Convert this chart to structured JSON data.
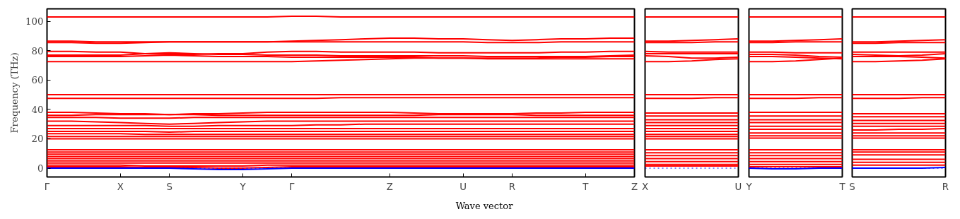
{
  "chart_data": [
    {
      "type": "line",
      "xlabel": "Wave vector",
      "ylabel": "Frequency (THz)",
      "categories": [
        "Γ",
        null,
        null,
        "X",
        null,
        "S",
        null,
        null,
        "Y",
        null,
        "Γ",
        null,
        null,
        null,
        "Z",
        null,
        null,
        "U",
        null,
        "R",
        null,
        null,
        "T",
        null,
        "Z"
      ],
      "ylim": [
        -6,
        108.5
      ],
      "yticks": [
        0,
        20,
        40,
        60,
        80,
        100
      ],
      "ref_lines": [
        {
          "axis": "y",
          "value": 0,
          "color": "#0000ff",
          "line_style": "dotted"
        }
      ],
      "series": [
        {
          "color": "#ff0000",
          "values": [
            103,
            103,
            103,
            103,
            103,
            103,
            103,
            103,
            103,
            103,
            103.5,
            103.5,
            103,
            103,
            103,
            103,
            103,
            103,
            103,
            103,
            103,
            103,
            103,
            103,
            103
          ]
        },
        {
          "color": "#ff0000",
          "values": [
            86.5,
            86.5,
            86,
            86,
            86,
            86,
            86,
            86,
            86,
            86,
            86.5,
            87,
            87.5,
            88,
            88.5,
            88.5,
            88,
            88,
            87.5,
            87,
            87.5,
            88,
            88,
            88.5,
            88.5
          ]
        },
        {
          "color": "#ff0000",
          "values": [
            85.5,
            85.5,
            85,
            85,
            85.5,
            86,
            86,
            86,
            86,
            86,
            86,
            86,
            86,
            86,
            86,
            86,
            86,
            86,
            85.5,
            85.5,
            85.5,
            86,
            86,
            86,
            86
          ]
        },
        {
          "color": "#ff0000",
          "values": [
            79.5,
            79.5,
            79,
            79,
            78,
            77.5,
            77.5,
            78,
            78,
            79,
            79.5,
            79.5,
            79,
            79,
            79,
            79,
            78.5,
            78.5,
            78.5,
            78.5,
            78.5,
            79,
            79,
            79.5,
            79.5
          ]
        },
        {
          "color": "#ff0000",
          "values": [
            77,
            77,
            77,
            77,
            78,
            78.5,
            78,
            77.5,
            77.5,
            77,
            77,
            77,
            76.5,
            76.5,
            76.5,
            76.5,
            76.5,
            76.5,
            76,
            76,
            76,
            76,
            76,
            76.5,
            77
          ]
        },
        {
          "color": "#ff0000",
          "values": [
            76,
            76,
            76,
            76,
            76.5,
            77,
            76.5,
            76,
            76,
            76,
            75.5,
            75.5,
            75.5,
            75.5,
            75.5,
            75.5,
            75,
            75,
            75,
            75,
            75,
            75.5,
            75.5,
            76,
            76
          ]
        },
        {
          "color": "#ff0000",
          "values": [
            72.5,
            72.5,
            72.5,
            72.5,
            72.5,
            72.5,
            72.5,
            72.5,
            72.5,
            72.5,
            72.5,
            73,
            73.5,
            74,
            74.5,
            75,
            75,
            75,
            74.5,
            74.5,
            74.5,
            74.5,
            74.5,
            74.5,
            74.5
          ]
        },
        {
          "color": "#ff0000",
          "values": [
            50,
            50,
            50,
            50,
            50,
            50,
            50,
            50,
            50,
            50,
            50,
            50,
            50,
            50,
            50,
            50,
            50,
            50,
            50,
            50,
            50,
            50,
            50,
            50,
            50
          ]
        },
        {
          "color": "#ff0000",
          "values": [
            47.5,
            47.5,
            47.5,
            47.5,
            47.5,
            47.5,
            47.5,
            47.5,
            47.5,
            47.5,
            47.5,
            47.5,
            48,
            48,
            48,
            48,
            48,
            48,
            48,
            48,
            48,
            48,
            48,
            48,
            48
          ]
        },
        {
          "color": "#ff0000",
          "values": [
            38,
            38,
            37.5,
            37,
            37,
            36.5,
            37,
            37,
            37.5,
            38,
            38,
            38,
            38,
            38,
            38,
            37.5,
            37,
            37,
            37,
            37,
            37.5,
            37.5,
            38,
            38,
            38
          ]
        },
        {
          "color": "#ff0000",
          "values": [
            36,
            36,
            36.5,
            36.5,
            36.5,
            36.5,
            36.5,
            36,
            36,
            36,
            36,
            36,
            36,
            36,
            36,
            36,
            36.5,
            36.5,
            36.5,
            36.5,
            36,
            36,
            36,
            36,
            36
          ]
        },
        {
          "color": "#ff0000",
          "values": [
            34.5,
            34.5,
            34.5,
            34,
            34,
            34,
            34.5,
            34.5,
            34.5,
            34.5,
            34.5,
            34.5,
            34.5,
            34.5,
            34.5,
            34.5,
            34.5,
            34.5,
            34.5,
            34.5,
            34.5,
            34.5,
            34.5,
            34.5,
            34.5
          ]
        },
        {
          "color": "#ff0000",
          "values": [
            32,
            32,
            31.5,
            31,
            30.5,
            30,
            30.5,
            31,
            31.5,
            32,
            32,
            32,
            32,
            32,
            32,
            32,
            32,
            32,
            32,
            32,
            32,
            32,
            32,
            32,
            32
          ]
        },
        {
          "color": "#ff0000",
          "values": [
            29,
            29,
            29,
            29,
            29,
            28.5,
            28.5,
            29,
            29,
            29,
            29,
            29.5,
            29.5,
            30,
            30,
            30,
            30,
            30,
            30,
            30,
            30,
            30,
            30,
            30,
            30
          ]
        },
        {
          "color": "#ff0000",
          "values": [
            27,
            27,
            27,
            27,
            27,
            27,
            27,
            27,
            27,
            27,
            27,
            27,
            27,
            27,
            27,
            27,
            27,
            27,
            27,
            27,
            27,
            27,
            27,
            27,
            27
          ]
        },
        {
          "color": "#ff0000",
          "values": [
            25,
            25,
            25,
            25,
            25,
            24.5,
            25,
            25,
            25,
            25,
            25,
            25,
            25,
            25,
            25,
            25,
            25,
            25,
            25,
            25,
            25,
            25,
            25,
            25,
            25
          ]
        },
        {
          "color": "#ff0000",
          "values": [
            23.5,
            23.5,
            23.5,
            23.5,
            23,
            23,
            23,
            23,
            23,
            23,
            23,
            23,
            23,
            23,
            23,
            23,
            23,
            23,
            23,
            23,
            23,
            23,
            23,
            23,
            23
          ]
        },
        {
          "color": "#ff0000",
          "values": [
            21.5,
            21.5,
            21.5,
            21.5,
            21.5,
            21.5,
            21.5,
            21.5,
            21.5,
            21.5,
            21.5,
            21.5,
            21.5,
            21.5,
            21.5,
            21.5,
            21.5,
            21.5,
            21.5,
            21.5,
            21.5,
            21.5,
            21.5,
            21.5,
            21.5
          ]
        },
        {
          "color": "#ff0000",
          "values": [
            20,
            20,
            20,
            20,
            20,
            20,
            20,
            20,
            20,
            20,
            20,
            20,
            20,
            20,
            20,
            20,
            20,
            20,
            20,
            20,
            20,
            20,
            20,
            20,
            20
          ]
        },
        {
          "color": "#ff0000",
          "values": [
            12.5,
            12.5,
            12.5,
            12.5,
            12.5,
            12.5,
            12.5,
            12.5,
            12.5,
            12.5,
            12.5,
            12.5,
            12.5,
            12.5,
            12.5,
            12.5,
            12.5,
            12.5,
            12.5,
            12.5,
            12.5,
            12.5,
            12.5,
            12.5,
            12.5
          ]
        },
        {
          "color": "#ff0000",
          "values": [
            11,
            11,
            11,
            11,
            11,
            11,
            11,
            11,
            11,
            11,
            11,
            11,
            11,
            11,
            11,
            11,
            11,
            11,
            11,
            11,
            11,
            11,
            11,
            11,
            11
          ]
        },
        {
          "color": "#ff0000",
          "values": [
            9.5,
            9.5,
            9.5,
            9.5,
            9.5,
            9.5,
            9.5,
            9.5,
            9.5,
            9.5,
            9.5,
            9.5,
            9.5,
            9.5,
            9.5,
            9.5,
            9.5,
            9.5,
            9.5,
            9.5,
            9.5,
            9.5,
            9.5,
            9.5,
            9.5
          ]
        },
        {
          "color": "#ff0000",
          "values": [
            8,
            8,
            8,
            8,
            8,
            8,
            8,
            8,
            8,
            8,
            8,
            8,
            8,
            8,
            8,
            8,
            8,
            8,
            8,
            8,
            8,
            8,
            8,
            8,
            8
          ]
        },
        {
          "color": "#ff0000",
          "values": [
            6.5,
            6.5,
            6.5,
            6.5,
            6.5,
            6.5,
            6.5,
            6.5,
            6.5,
            6.5,
            6.5,
            6.5,
            6.5,
            6.5,
            6.5,
            6.5,
            6.5,
            6.5,
            6.5,
            6.5,
            6.5,
            6.5,
            6.5,
            6.5,
            6.5
          ]
        },
        {
          "color": "#ff0000",
          "values": [
            5,
            5,
            5,
            5,
            5,
            5,
            5,
            5,
            5,
            5,
            5,
            5,
            5,
            5,
            5,
            5,
            5,
            5,
            5,
            5,
            5,
            5,
            5,
            5,
            5
          ]
        },
        {
          "color": "#ff0000",
          "values": [
            3.5,
            3.5,
            3.5,
            3.5,
            3.5,
            3.5,
            3.5,
            3.5,
            3.5,
            3.5,
            3.5,
            3.5,
            3.5,
            3.5,
            3.5,
            3.5,
            3.5,
            3.5,
            3.5,
            3.5,
            3.5,
            3.5,
            3.5,
            3.5,
            3.5
          ]
        },
        {
          "color": "#ff0000",
          "values": [
            2,
            2,
            2,
            2,
            1.5,
            1.5,
            1.5,
            1.5,
            1.5,
            2,
            2,
            2,
            2,
            2,
            2,
            2,
            2,
            2,
            2,
            2,
            2,
            2,
            2,
            2,
            2
          ]
        },
        {
          "color": "#ff0000",
          "values": [
            1,
            1,
            1,
            1,
            0.5,
            0.5,
            0.5,
            0,
            0,
            0.5,
            1,
            1,
            1,
            1,
            1,
            1,
            1,
            1,
            1,
            1,
            1,
            1,
            1,
            1,
            1
          ]
        },
        {
          "color": "#0000ff",
          "values": [
            0,
            0,
            0,
            0,
            0,
            0,
            -0.5,
            -1,
            -1,
            -0.5,
            0,
            0,
            0,
            0,
            0,
            0,
            0,
            0,
            0,
            0,
            0,
            0,
            0,
            0,
            0
          ]
        }
      ]
    },
    {
      "type": "line",
      "tick_labels": "x",
      "categories": [
        "X",
        null,
        null,
        null,
        "U"
      ],
      "ylim": [
        -6,
        108.5
      ],
      "ref_lines": [
        {
          "axis": "y",
          "value": 0,
          "color": "#0000ff",
          "line_style": "dotted"
        }
      ],
      "series": [
        {
          "color": "#ff0000",
          "values": [
            103,
            103,
            103,
            103,
            103
          ]
        },
        {
          "color": "#ff0000",
          "values": [
            86.5,
            86.5,
            87,
            87.5,
            88
          ]
        },
        {
          "color": "#ff0000",
          "values": [
            85.5,
            85.5,
            85.5,
            86,
            86
          ]
        },
        {
          "color": "#ff0000",
          "values": [
            79.5,
            79,
            79,
            79,
            79
          ]
        },
        {
          "color": "#ff0000",
          "values": [
            78,
            78,
            78,
            78,
            78
          ]
        },
        {
          "color": "#ff0000",
          "values": [
            76.5,
            76,
            75,
            75,
            75.5
          ]
        },
        {
          "color": "#ff0000",
          "values": [
            72.5,
            72.5,
            73,
            74,
            74.5
          ]
        },
        {
          "color": "#ff0000",
          "values": [
            50,
            50,
            50,
            50,
            50
          ]
        },
        {
          "color": "#ff0000",
          "values": [
            47.5,
            47.5,
            47.5,
            48,
            48
          ]
        },
        {
          "color": "#ff0000",
          "values": [
            37.5,
            37.5,
            37.5,
            37.5,
            37.5
          ]
        },
        {
          "color": "#ff0000",
          "values": [
            35.5,
            35.5,
            35.5,
            35.5,
            35.5
          ]
        },
        {
          "color": "#ff0000",
          "values": [
            33,
            33,
            33,
            33,
            33
          ]
        },
        {
          "color": "#ff0000",
          "values": [
            31,
            31,
            31,
            31,
            31
          ]
        },
        {
          "color": "#ff0000",
          "values": [
            29,
            29,
            29,
            29,
            29
          ]
        },
        {
          "color": "#ff0000",
          "values": [
            27,
            27,
            27,
            27,
            27
          ]
        },
        {
          "color": "#ff0000",
          "values": [
            25,
            25,
            25,
            25,
            25
          ]
        },
        {
          "color": "#ff0000",
          "values": [
            23,
            23,
            23,
            23,
            23
          ]
        },
        {
          "color": "#ff0000",
          "values": [
            21.5,
            21.5,
            21.5,
            21.5,
            21.5
          ]
        },
        {
          "color": "#ff0000",
          "values": [
            20,
            20,
            20,
            20,
            20
          ]
        },
        {
          "color": "#ff0000",
          "values": [
            12.5,
            12.5,
            12.5,
            12.5,
            12.5
          ]
        },
        {
          "color": "#ff0000",
          "values": [
            10.5,
            10.5,
            10.5,
            10.5,
            10.5
          ]
        },
        {
          "color": "#ff0000",
          "values": [
            8.5,
            8.5,
            8.5,
            8.5,
            8.5
          ]
        },
        {
          "color": "#ff0000",
          "values": [
            6.5,
            6.5,
            6.5,
            6.5,
            6.5
          ]
        },
        {
          "color": "#ff0000",
          "values": [
            4.5,
            4.5,
            4.5,
            4.5,
            4.5
          ]
        },
        {
          "color": "#ff0000",
          "values": [
            2.5,
            2.5,
            2.5,
            2.5,
            2.5
          ]
        },
        {
          "color": "#ff0000",
          "values": [
            1.5,
            1.5,
            1.5,
            1.5,
            1.5
          ]
        }
      ]
    },
    {
      "type": "line",
      "tick_labels": "x",
      "categories": [
        "Y",
        null,
        null,
        null,
        "T"
      ],
      "ylim": [
        -6,
        108.5
      ],
      "ref_lines": [
        {
          "axis": "y",
          "value": 0,
          "color": "#0000ff",
          "line_style": "dotted"
        }
      ],
      "series": [
        {
          "color": "#ff0000",
          "values": [
            103,
            103,
            103,
            103,
            103
          ]
        },
        {
          "color": "#ff0000",
          "values": [
            86.5,
            86.5,
            87,
            87.5,
            88
          ]
        },
        {
          "color": "#ff0000",
          "values": [
            85.5,
            85.5,
            86,
            86,
            86
          ]
        },
        {
          "color": "#ff0000",
          "values": [
            79,
            79,
            78.5,
            78.5,
            78.5
          ]
        },
        {
          "color": "#ff0000",
          "values": [
            77.5,
            77.5,
            77,
            76,
            75.5
          ]
        },
        {
          "color": "#ff0000",
          "values": [
            76,
            76,
            75.5,
            75,
            74.5
          ]
        },
        {
          "color": "#ff0000",
          "values": [
            72.5,
            72.5,
            73,
            74,
            75
          ]
        },
        {
          "color": "#ff0000",
          "values": [
            50,
            50,
            50,
            50,
            50
          ]
        },
        {
          "color": "#ff0000",
          "values": [
            47.5,
            47.5,
            47.5,
            48,
            48
          ]
        },
        {
          "color": "#ff0000",
          "values": [
            38,
            38,
            38,
            38,
            38
          ]
        },
        {
          "color": "#ff0000",
          "values": [
            35.5,
            35.5,
            35.5,
            35.5,
            35.5
          ]
        },
        {
          "color": "#ff0000",
          "values": [
            33,
            33,
            33,
            33,
            33
          ]
        },
        {
          "color": "#ff0000",
          "values": [
            31,
            31,
            31,
            31,
            31
          ]
        },
        {
          "color": "#ff0000",
          "values": [
            28.5,
            28.5,
            28.5,
            28.5,
            28.5
          ]
        },
        {
          "color": "#ff0000",
          "values": [
            26.5,
            26.5,
            26.5,
            26.5,
            26.5
          ]
        },
        {
          "color": "#ff0000",
          "values": [
            24,
            24,
            24,
            24,
            24
          ]
        },
        {
          "color": "#ff0000",
          "values": [
            22,
            22,
            22,
            22,
            22
          ]
        },
        {
          "color": "#ff0000",
          "values": [
            20.5,
            20.5,
            20.5,
            20.5,
            20.5
          ]
        },
        {
          "color": "#ff0000",
          "values": [
            12.5,
            12.5,
            12.5,
            12.5,
            12.5
          ]
        },
        {
          "color": "#ff0000",
          "values": [
            10.5,
            10.5,
            10.5,
            10.5,
            10.5
          ]
        },
        {
          "color": "#ff0000",
          "values": [
            8.5,
            8.5,
            8.5,
            8.5,
            8.5
          ]
        },
        {
          "color": "#ff0000",
          "values": [
            6.5,
            6.5,
            6.5,
            6.5,
            6.5
          ]
        },
        {
          "color": "#ff0000",
          "values": [
            4.5,
            4.5,
            4.5,
            4.5,
            4.5
          ]
        },
        {
          "color": "#ff0000",
          "values": [
            2.5,
            2.5,
            2.5,
            2.5,
            2.5
          ]
        },
        {
          "color": "#ff0000",
          "values": [
            1,
            1,
            1,
            1,
            1
          ]
        },
        {
          "color": "#0000ff",
          "values": [
            0,
            -0.5,
            -0.5,
            0,
            0
          ]
        }
      ]
    },
    {
      "type": "line",
      "tick_labels": "x",
      "categories": [
        "S",
        null,
        null,
        null,
        "R"
      ],
      "ylim": [
        -6,
        108.5
      ],
      "ref_lines": [
        {
          "axis": "y",
          "value": 0,
          "color": "#0000ff",
          "line_style": "dotted"
        }
      ],
      "series": [
        {
          "color": "#ff0000",
          "values": [
            103,
            103,
            103,
            103,
            103
          ]
        },
        {
          "color": "#ff0000",
          "values": [
            86,
            86,
            86.5,
            87,
            87.5
          ]
        },
        {
          "color": "#ff0000",
          "values": [
            85,
            85,
            85.5,
            85.5,
            85.5
          ]
        },
        {
          "color": "#ff0000",
          "values": [
            79,
            79,
            79,
            79,
            79
          ]
        },
        {
          "color": "#ff0000",
          "values": [
            77.5,
            77,
            76.5,
            77,
            78
          ]
        },
        {
          "color": "#ff0000",
          "values": [
            76,
            76,
            76,
            75.5,
            75
          ]
        },
        {
          "color": "#ff0000",
          "values": [
            72.5,
            72.5,
            73,
            73.5,
            74.5
          ]
        },
        {
          "color": "#ff0000",
          "values": [
            50,
            50,
            50,
            50,
            50
          ]
        },
        {
          "color": "#ff0000",
          "values": [
            47.5,
            47.5,
            47.5,
            48,
            48
          ]
        },
        {
          "color": "#ff0000",
          "values": [
            37,
            37,
            37,
            37,
            37
          ]
        },
        {
          "color": "#ff0000",
          "values": [
            35,
            35,
            35,
            35,
            35
          ]
        },
        {
          "color": "#ff0000",
          "values": [
            32.5,
            32.5,
            32.5,
            32.5,
            32.5
          ]
        },
        {
          "color": "#ff0000",
          "values": [
            30.5,
            30.5,
            30.5,
            30.5,
            30.5
          ]
        },
        {
          "color": "#ff0000",
          "values": [
            28.5,
            28.5,
            28.5,
            28.5,
            28.5
          ]
        },
        {
          "color": "#ff0000",
          "values": [
            26,
            26,
            26.5,
            26.5,
            27
          ]
        },
        {
          "color": "#ff0000",
          "values": [
            24,
            24,
            24,
            24,
            24
          ]
        },
        {
          "color": "#ff0000",
          "values": [
            22,
            22,
            22,
            22,
            22
          ]
        },
        {
          "color": "#ff0000",
          "values": [
            20.5,
            20.5,
            20.5,
            20.5,
            20.5
          ]
        },
        {
          "color": "#ff0000",
          "values": [
            12.5,
            12.5,
            12.5,
            12.5,
            12.5
          ]
        },
        {
          "color": "#ff0000",
          "values": [
            11,
            11,
            11,
            11,
            11
          ]
        },
        {
          "color": "#ff0000",
          "values": [
            9,
            9,
            9,
            9,
            9
          ]
        },
        {
          "color": "#ff0000",
          "values": [
            6,
            6,
            6,
            6,
            6
          ]
        },
        {
          "color": "#ff0000",
          "values": [
            4,
            4,
            4,
            4,
            4
          ]
        },
        {
          "color": "#ff0000",
          "values": [
            2,
            2,
            2,
            2,
            2
          ]
        },
        {
          "color": "#0000ff",
          "values": [
            0,
            0,
            0,
            0,
            0.5
          ]
        }
      ]
    }
  ]
}
